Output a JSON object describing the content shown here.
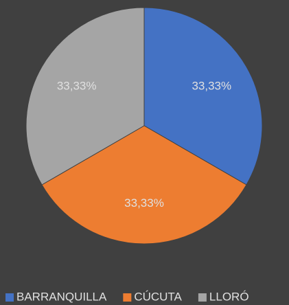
{
  "chart_data": {
    "type": "pie",
    "categories": [
      "BARRANQUILLA",
      "CÚCUTA",
      "LLORÓ"
    ],
    "values": [
      33.33,
      33.33,
      33.33
    ],
    "value_labels": [
      "33,33%",
      "33,33%",
      "33,33%"
    ],
    "colors": [
      "#4472c4",
      "#ed7d31",
      "#a5a5a5"
    ],
    "legend": "bottom"
  }
}
